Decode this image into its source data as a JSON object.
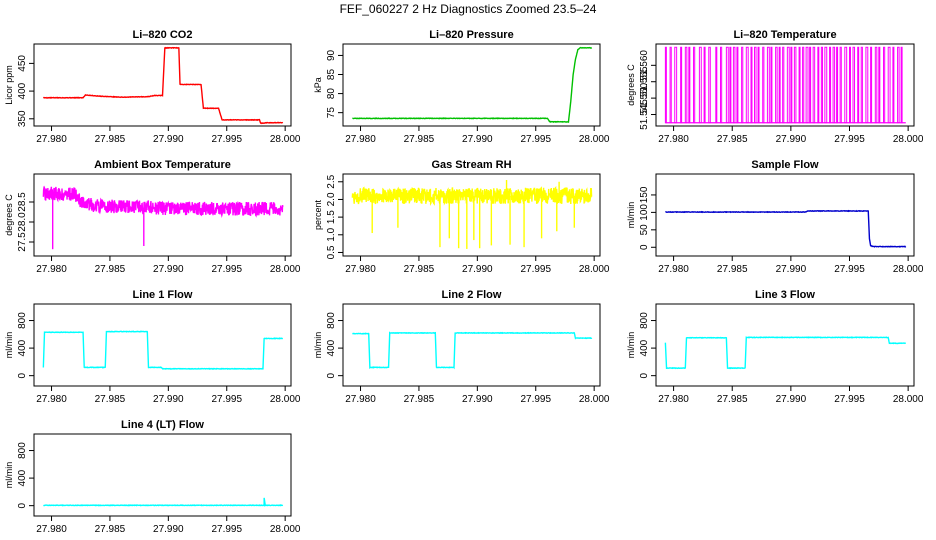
{
  "figure": {
    "title": "FEF_060227  2 Hz Diagnostics Zoomed 23.5–24"
  },
  "chart_data": [
    {
      "type": "line",
      "title": "Li–820 CO2",
      "ylabel": "Licor ppm",
      "color": "#ff0000",
      "xlim": [
        27.9785,
        28.0005
      ],
      "ylim": [
        337,
        485
      ],
      "xticks": [
        "27.980",
        "27.985",
        "27.990",
        "27.995",
        "28.000"
      ],
      "yticks": [
        "350",
        "400",
        "450"
      ],
      "series": [
        {
          "x": [
            27.9793,
            27.9827,
            27.9829,
            27.984,
            27.986,
            27.9883,
            27.9888,
            27.9895,
            27.9897,
            27.9909,
            27.991,
            27.9928,
            27.993,
            27.9943,
            27.9946,
            27.9966,
            27.9978,
            27.9979,
            27.9985,
            27.9998
          ],
          "y": [
            388,
            388,
            393,
            391,
            389,
            390,
            392,
            392,
            478,
            478,
            412,
            412,
            369,
            369,
            348,
            348,
            348,
            342,
            343,
            343
          ]
        }
      ]
    },
    {
      "type": "line",
      "title": "Li–820 Pressure",
      "ylabel": "kPa",
      "color": "#00c000",
      "xlim": [
        27.9785,
        28.0005
      ],
      "ylim": [
        71.5,
        93
      ],
      "xticks": [
        "27.980",
        "27.985",
        "27.990",
        "27.995",
        "28.000"
      ],
      "yticks": [
        "75",
        "80",
        "85",
        "90"
      ],
      "series": [
        {
          "x": [
            27.9793,
            27.996,
            27.9962,
            27.9978,
            27.998,
            27.9982,
            27.9984,
            27.9986,
            27.9988,
            27.9998
          ],
          "y": [
            73.5,
            73.5,
            72.6,
            72.6,
            78,
            85,
            89,
            91.5,
            92,
            92
          ]
        }
      ]
    },
    {
      "type": "line",
      "title": "Li–820 Temperature",
      "ylabel": "degrees C",
      "color": "#ff00ff",
      "xlim": [
        27.9785,
        28.0005
      ],
      "ylim": [
        51.5415,
        51.5665
      ],
      "xticks": [
        "27.980",
        "27.985",
        "27.990",
        "27.995",
        "28.000"
      ],
      "yticks": [
        "51.545",
        "51.550",
        "51.555",
        "51.560"
      ],
      "baseline": 51.5425,
      "top": 51.5655,
      "spikes": [
        27.9793,
        27.9797,
        27.9801,
        27.9806,
        27.981,
        27.9813,
        27.9817,
        27.9822,
        27.9826,
        27.983,
        27.9836,
        27.984,
        27.9845,
        27.9848,
        27.9851,
        27.9854,
        27.9858,
        27.9862,
        27.9866,
        27.9869,
        27.9872,
        27.9876,
        27.988,
        27.9883,
        27.9887,
        27.989,
        27.9893,
        27.9897,
        27.99,
        27.9903,
        27.9907,
        27.991,
        27.9913,
        27.9916,
        27.9919,
        27.9923,
        27.9926,
        27.9929,
        27.9933,
        27.9936,
        27.9939,
        27.9942,
        27.9946,
        27.995,
        27.9953,
        27.9957,
        27.996,
        27.9964,
        27.9968,
        27.9972,
        27.9975,
        27.9979,
        27.9983,
        27.9987,
        27.9991,
        27.9994
      ]
    },
    {
      "type": "line",
      "title": "Ambient Box Temperature",
      "ylabel": "degrees C",
      "color": "#ff00ff",
      "xlim": [
        27.9785,
        28.0005
      ],
      "ylim": [
        27.15,
        29.2
      ],
      "xticks": [
        "27.980",
        "27.985",
        "27.990",
        "27.995",
        "28.000"
      ],
      "yticks": [
        "27.5",
        "28.0",
        "28.5"
      ],
      "series": [
        {
          "x": [
            27.9793,
            27.98,
            27.981,
            27.982,
            27.9825,
            27.983,
            27.984,
            27.986,
            27.988,
            27.99,
            27.992,
            27.994,
            27.996,
            27.998,
            27.9998
          ],
          "y": [
            28.68,
            28.72,
            28.7,
            28.7,
            28.52,
            28.45,
            28.4,
            28.38,
            28.36,
            28.34,
            28.34,
            28.33,
            28.33,
            28.33,
            28.32
          ]
        }
      ],
      "noise": 0.17,
      "drops": [
        [
          27.9801,
          27.32
        ],
        [
          27.9879,
          27.4
        ]
      ]
    },
    {
      "type": "line",
      "title": "Gas Stream RH",
      "ylabel": "percent",
      "color": "#ffff00",
      "xlim": [
        27.9785,
        28.0005
      ],
      "ylim": [
        0.4,
        2.72
      ],
      "xticks": [
        "27.980",
        "27.985",
        "27.990",
        "27.995",
        "28.000"
      ],
      "yticks": [
        "0.5",
        "1.0",
        "1.5",
        "2.0",
        "2.5"
      ],
      "series": [
        {
          "x": [
            27.9793,
            27.9998
          ],
          "y": [
            2.1,
            2.1
          ]
        }
      ],
      "noise": 0.23,
      "drops": [
        [
          27.9868,
          0.65
        ],
        [
          27.9876,
          0.9
        ],
        [
          27.9884,
          0.62
        ],
        [
          27.9891,
          0.6
        ],
        [
          27.9897,
          0.85
        ],
        [
          27.9902,
          0.62
        ],
        [
          27.9912,
          0.7
        ],
        [
          27.9928,
          0.72
        ],
        [
          27.994,
          0.65
        ],
        [
          27.9955,
          0.9
        ],
        [
          27.9968,
          1.1
        ],
        [
          27.9983,
          1.2
        ],
        [
          27.9832,
          1.2
        ],
        [
          27.981,
          1.05
        ]
      ],
      "spikes_up": [
        [
          27.9925,
          2.55
        ],
        [
          27.997,
          2.5
        ]
      ]
    },
    {
      "type": "line",
      "title": "Sample Flow",
      "ylabel": "ml/min",
      "color": "#0000cc",
      "xlim": [
        27.9785,
        28.0005
      ],
      "ylim": [
        -25,
        210
      ],
      "xticks": [
        "27.980",
        "27.985",
        "27.990",
        "27.995",
        "28.000"
      ],
      "yticks": [
        "0",
        "50",
        "100",
        "150"
      ],
      "series": [
        {
          "x": [
            27.9793,
            27.9913,
            27.9914,
            27.9966,
            27.9967,
            27.9968,
            27.997,
            27.9998
          ],
          "y": [
            101,
            101,
            104,
            104,
            25,
            5,
            2,
            2
          ]
        }
      ]
    },
    {
      "type": "line",
      "title": "Line 1 Flow",
      "ylabel": "ml/min",
      "color": "#00ffff",
      "xlim": [
        27.9785,
        28.0005
      ],
      "ylim": [
        -150,
        1040
      ],
      "xticks": [
        "27.980",
        "27.985",
        "27.990",
        "27.995",
        "28.000"
      ],
      "yticks": [
        "0",
        "400",
        "800"
      ],
      "series": [
        {
          "x": [
            27.9793,
            27.9794,
            27.9827,
            27.9828,
            27.9846,
            27.9847,
            27.9882,
            27.9883,
            27.9894,
            27.9895,
            27.9981,
            27.9982,
            27.9998
          ],
          "y": [
            120,
            630,
            630,
            120,
            120,
            640,
            640,
            120,
            120,
            100,
            100,
            540,
            540
          ]
        }
      ]
    },
    {
      "type": "line",
      "title": "Line 2 Flow",
      "ylabel": "ml/min",
      "color": "#00ffff",
      "xlim": [
        27.9785,
        28.0005
      ],
      "ylim": [
        -150,
        1040
      ],
      "xticks": [
        "27.980",
        "27.985",
        "27.990",
        "27.995",
        "28.000"
      ],
      "yticks": [
        "0",
        "400",
        "800"
      ],
      "series": [
        {
          "x": [
            27.9793,
            27.9807,
            27.9808,
            27.9824,
            27.9825,
            27.9864,
            27.9865,
            27.988,
            27.9881,
            27.9983,
            27.9984,
            27.9998
          ],
          "y": [
            610,
            610,
            120,
            120,
            620,
            620,
            120,
            120,
            620,
            620,
            545,
            545
          ]
        }
      ]
    },
    {
      "type": "line",
      "title": "Line 3 Flow",
      "ylabel": "ml/min",
      "color": "#00ffff",
      "xlim": [
        27.9785,
        28.0005
      ],
      "ylim": [
        -150,
        1040
      ],
      "xticks": [
        "27.980",
        "27.985",
        "27.990",
        "27.995",
        "28.000"
      ],
      "yticks": [
        "0",
        "400",
        "800"
      ],
      "series": [
        {
          "x": [
            27.9793,
            27.9794,
            27.981,
            27.9811,
            27.9845,
            27.9846,
            27.9861,
            27.9862,
            27.9983,
            27.9984,
            27.9998
          ],
          "y": [
            480,
            110,
            110,
            550,
            550,
            110,
            110,
            555,
            555,
            470,
            470
          ]
        }
      ]
    },
    {
      "type": "line",
      "title": "Line 4 (LT) Flow",
      "ylabel": "ml/min",
      "color": "#00ffff",
      "xlim": [
        27.9785,
        28.0005
      ],
      "ylim": [
        -150,
        1040
      ],
      "xticks": [
        "27.980",
        "27.985",
        "27.990",
        "27.995",
        "28.000"
      ],
      "yticks": [
        "0",
        "400",
        "800"
      ],
      "series": [
        {
          "x": [
            27.9793,
            27.9982,
            27.9982,
            27.9983,
            27.9998
          ],
          "y": [
            5,
            5,
            110,
            5,
            5
          ]
        }
      ]
    }
  ]
}
